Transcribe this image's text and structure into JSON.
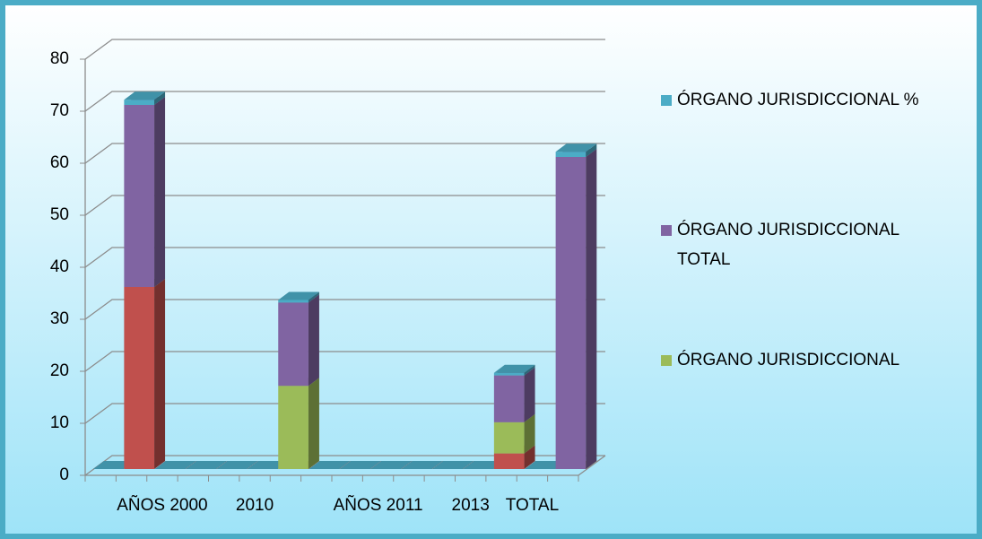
{
  "chart_data": {
    "type": "bar3d_stacked",
    "categories": [
      null,
      null,
      "AÑOS 2000",
      null,
      null,
      "2010",
      null,
      null,
      null,
      "AÑOS 2011",
      null,
      null,
      "2013",
      null,
      "TOTAL",
      null
    ],
    "series": [
      {
        "name": null,
        "color": "#c0504d",
        "values": [
          0,
          35,
          0,
          0,
          0,
          0,
          0,
          0,
          0,
          0,
          0,
          0,
          0,
          3,
          0,
          0
        ]
      },
      {
        "name": "ÓRGANO JURISDICCIONAL",
        "color": "#9bbb59",
        "values": [
          0,
          0,
          0,
          0,
          0,
          0,
          16,
          0,
          0,
          0,
          0,
          0,
          0,
          6,
          0,
          0
        ]
      },
      {
        "name": "ÓRGANO JURISDICCIONAL TOTAL",
        "color": "#8064a2",
        "values": [
          0,
          35,
          0,
          0,
          0,
          0,
          16,
          0,
          0,
          0,
          0,
          0,
          0,
          9,
          0,
          60
        ]
      },
      {
        "name": "ÓRGANO JURISDICCIONAL %",
        "color": "#4bacc6",
        "values": [
          0,
          1,
          0,
          0,
          0,
          0,
          0.5,
          0,
          0,
          0,
          0,
          0,
          0,
          0.5,
          0,
          1
        ]
      }
    ],
    "ylim": [
      0,
      80
    ],
    "yticks": [
      0,
      10,
      20,
      30,
      40,
      50,
      60,
      70,
      80
    ],
    "grid": true
  }
}
